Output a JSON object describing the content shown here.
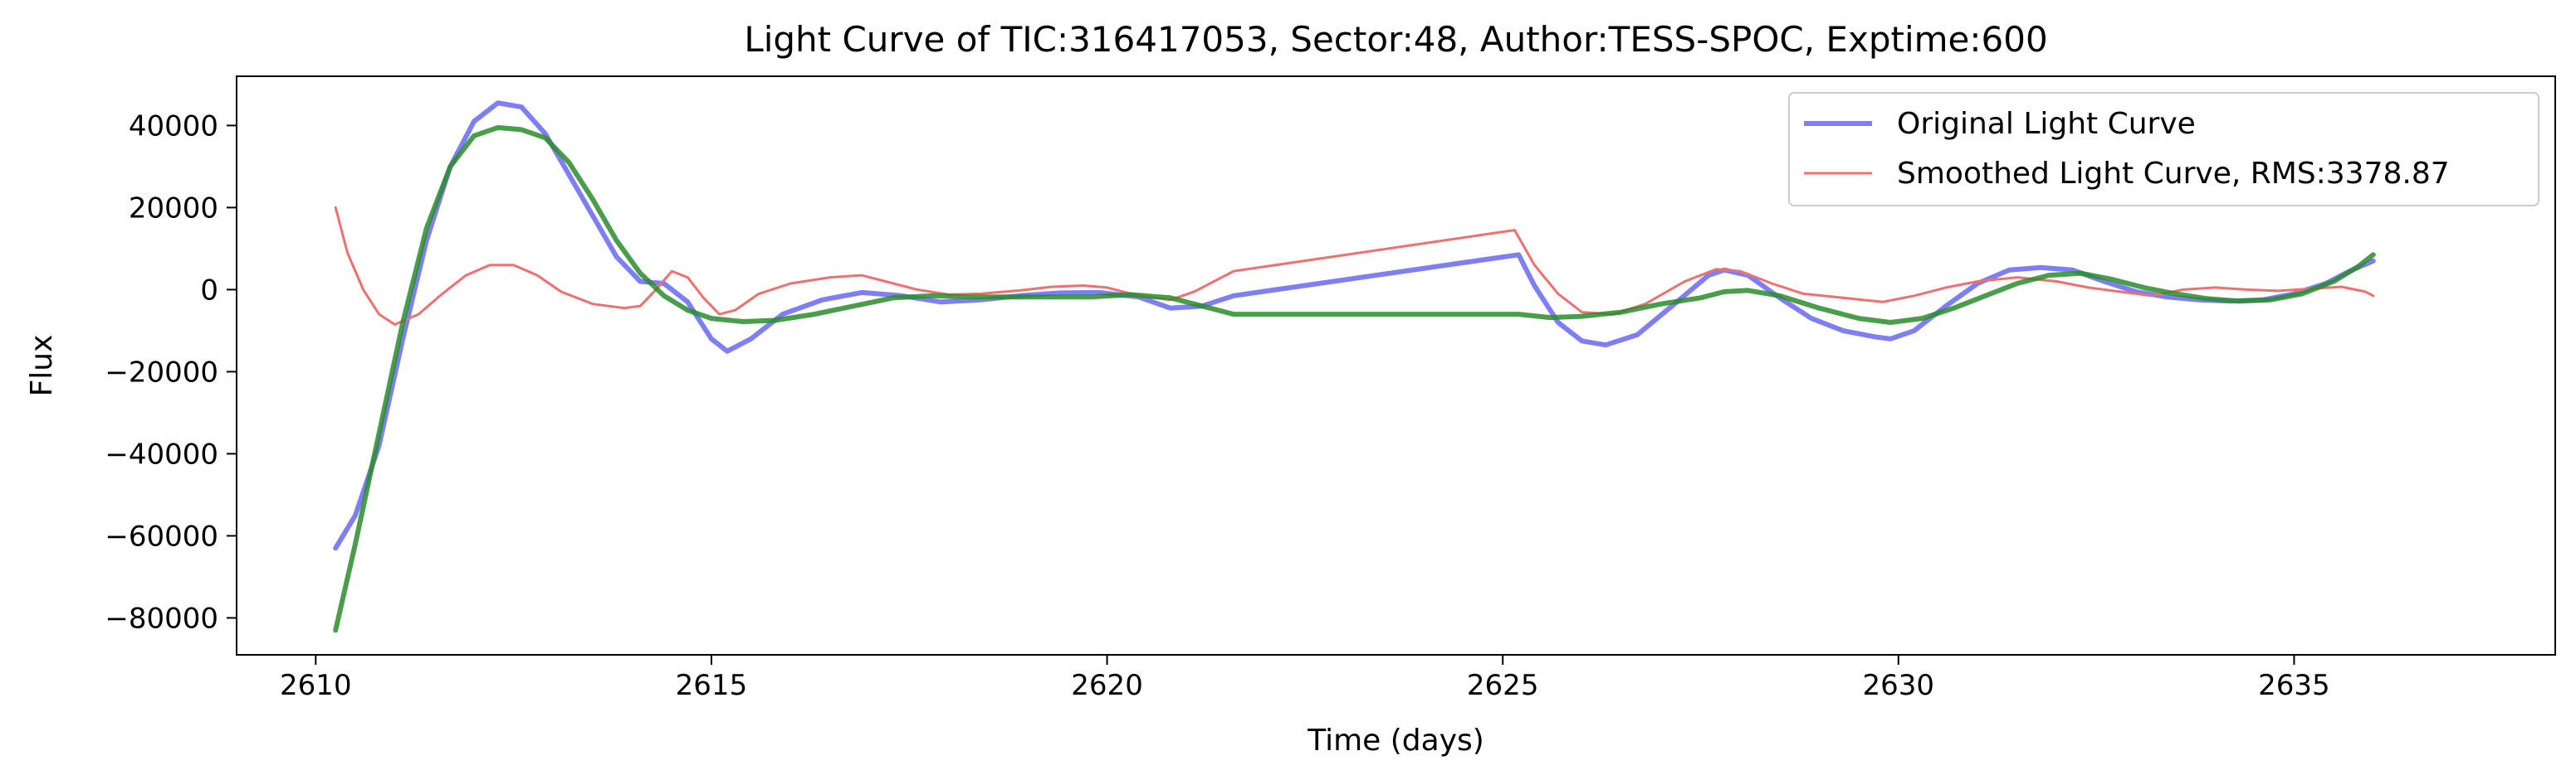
{
  "chart_data": {
    "type": "line",
    "title": "Light Curve of TIC:316417053, Sector:48, Author:TESS-SPOC, Exptime:600",
    "xlabel": "Time (days)",
    "ylabel": "Flux",
    "xlim": [
      2609,
      2638.3
    ],
    "ylim": [
      -89000,
      52000
    ],
    "xticks": [
      2610,
      2615,
      2620,
      2625,
      2630,
      2635
    ],
    "yticks": [
      40000,
      20000,
      0,
      -20000,
      -40000,
      -60000,
      -80000
    ],
    "xtick_labels": [
      "2610",
      "2615",
      "2620",
      "2625",
      "2630",
      "2635"
    ],
    "ytick_labels": [
      "40000",
      "20000",
      "0",
      "−20000",
      "−40000",
      "−60000",
      "−80000"
    ],
    "grid": false,
    "legend_position": "top-right",
    "series": [
      {
        "name": "Original Light Curve",
        "color": "#7f7ff5",
        "role": "original",
        "points": [
          [
            2610.25,
            -63000
          ],
          [
            2610.5,
            -55000
          ],
          [
            2610.8,
            -38000
          ],
          [
            2611.1,
            -12000
          ],
          [
            2611.4,
            12000
          ],
          [
            2611.7,
            30000
          ],
          [
            2612.0,
            41000
          ],
          [
            2612.3,
            45500
          ],
          [
            2612.6,
            44500
          ],
          [
            2612.9,
            38000
          ],
          [
            2613.2,
            28000
          ],
          [
            2613.5,
            18000
          ],
          [
            2613.8,
            8000
          ],
          [
            2614.1,
            2000
          ],
          [
            2614.4,
            1500
          ],
          [
            2614.7,
            -3000
          ],
          [
            2615.0,
            -12000
          ],
          [
            2615.2,
            -15000
          ],
          [
            2615.5,
            -12000
          ],
          [
            2615.9,
            -6000
          ],
          [
            2616.4,
            -2500
          ],
          [
            2616.9,
            -700
          ],
          [
            2617.4,
            -1500
          ],
          [
            2617.9,
            -3000
          ],
          [
            2618.4,
            -2500
          ],
          [
            2618.9,
            -1500
          ],
          [
            2619.4,
            -800
          ],
          [
            2619.9,
            -700
          ],
          [
            2620.4,
            -1800
          ],
          [
            2620.8,
            -4500
          ],
          [
            2621.2,
            -4000
          ],
          [
            2621.6,
            -1500
          ],
          [
            2625.2,
            8500
          ],
          [
            2625.4,
            1000
          ],
          [
            2625.7,
            -8000
          ],
          [
            2626.0,
            -12500
          ],
          [
            2626.3,
            -13500
          ],
          [
            2626.7,
            -11000
          ],
          [
            2627.2,
            -3000
          ],
          [
            2627.6,
            3500
          ],
          [
            2627.8,
            4800
          ],
          [
            2628.1,
            3500
          ],
          [
            2628.5,
            -2000
          ],
          [
            2628.9,
            -7000
          ],
          [
            2629.3,
            -10000
          ],
          [
            2629.7,
            -11500
          ],
          [
            2629.9,
            -12000
          ],
          [
            2630.2,
            -10000
          ],
          [
            2630.6,
            -4000
          ],
          [
            2631.0,
            1500
          ],
          [
            2631.4,
            4800
          ],
          [
            2631.8,
            5400
          ],
          [
            2632.2,
            4800
          ],
          [
            2632.6,
            2000
          ],
          [
            2633.0,
            -500
          ],
          [
            2633.4,
            -1800
          ],
          [
            2633.8,
            -2500
          ],
          [
            2634.2,
            -2800
          ],
          [
            2634.6,
            -2500
          ],
          [
            2635.0,
            -1000
          ],
          [
            2635.4,
            1500
          ],
          [
            2635.7,
            4500
          ],
          [
            2636.0,
            7000
          ]
        ]
      },
      {
        "name": "Smoothed Light Curve, RMS:3378.87",
        "color": "#f07070",
        "role": "smoothed",
        "points": [
          [
            2610.25,
            20000
          ],
          [
            2610.4,
            9000
          ],
          [
            2610.6,
            0
          ],
          [
            2610.8,
            -6000
          ],
          [
            2611.0,
            -8500
          ],
          [
            2611.3,
            -6000
          ],
          [
            2611.6,
            -1000
          ],
          [
            2611.9,
            3500
          ],
          [
            2612.2,
            6000
          ],
          [
            2612.5,
            6000
          ],
          [
            2612.8,
            3500
          ],
          [
            2613.1,
            -500
          ],
          [
            2613.5,
            -3500
          ],
          [
            2613.9,
            -4500
          ],
          [
            2614.1,
            -4000
          ],
          [
            2614.3,
            0
          ],
          [
            2614.5,
            4500
          ],
          [
            2614.7,
            3000
          ],
          [
            2614.9,
            -2000
          ],
          [
            2615.1,
            -6000
          ],
          [
            2615.3,
            -5000
          ],
          [
            2615.6,
            -1000
          ],
          [
            2616.0,
            1500
          ],
          [
            2616.5,
            3000
          ],
          [
            2616.9,
            3500
          ],
          [
            2617.2,
            2000
          ],
          [
            2617.6,
            0
          ],
          [
            2618.0,
            -1200
          ],
          [
            2618.4,
            -1000
          ],
          [
            2618.9,
            -200
          ],
          [
            2619.3,
            700
          ],
          [
            2619.7,
            1000
          ],
          [
            2620.0,
            500
          ],
          [
            2620.4,
            -1500
          ],
          [
            2620.8,
            -2500
          ],
          [
            2621.1,
            -500
          ],
          [
            2621.6,
            4500
          ],
          [
            2625.15,
            14500
          ],
          [
            2625.4,
            6000
          ],
          [
            2625.7,
            -1000
          ],
          [
            2626.0,
            -5500
          ],
          [
            2626.4,
            -6000
          ],
          [
            2626.8,
            -3500
          ],
          [
            2627.3,
            2000
          ],
          [
            2627.7,
            5000
          ],
          [
            2628.0,
            4500
          ],
          [
            2628.4,
            1500
          ],
          [
            2628.8,
            -1000
          ],
          [
            2629.3,
            -2000
          ],
          [
            2629.8,
            -3000
          ],
          [
            2630.2,
            -1500
          ],
          [
            2630.6,
            500
          ],
          [
            2631.0,
            2000
          ],
          [
            2631.5,
            3000
          ],
          [
            2632.0,
            2000
          ],
          [
            2632.4,
            500
          ],
          [
            2632.8,
            -500
          ],
          [
            2633.2,
            -1500
          ],
          [
            2633.6,
            0
          ],
          [
            2634.0,
            500
          ],
          [
            2634.4,
            0
          ],
          [
            2634.8,
            -300
          ],
          [
            2635.2,
            200
          ],
          [
            2635.6,
            700
          ],
          [
            2635.9,
            -500
          ],
          [
            2636.0,
            -1500
          ]
        ]
      },
      {
        "name": "",
        "color": "#2a8c2a",
        "role": "model",
        "points": [
          [
            2610.25,
            -83000
          ],
          [
            2610.5,
            -62000
          ],
          [
            2610.8,
            -35000
          ],
          [
            2611.1,
            -8000
          ],
          [
            2611.4,
            15000
          ],
          [
            2611.7,
            30000
          ],
          [
            2612.0,
            37500
          ],
          [
            2612.3,
            39500
          ],
          [
            2612.6,
            39000
          ],
          [
            2612.9,
            37000
          ],
          [
            2613.2,
            31000
          ],
          [
            2613.5,
            22000
          ],
          [
            2613.8,
            12000
          ],
          [
            2614.1,
            4000
          ],
          [
            2614.4,
            -1500
          ],
          [
            2614.7,
            -5000
          ],
          [
            2615.0,
            -7000
          ],
          [
            2615.4,
            -7800
          ],
          [
            2615.8,
            -7500
          ],
          [
            2616.3,
            -6000
          ],
          [
            2616.8,
            -4000
          ],
          [
            2617.3,
            -2000
          ],
          [
            2617.8,
            -1500
          ],
          [
            2618.3,
            -1800
          ],
          [
            2618.8,
            -1800
          ],
          [
            2619.3,
            -1800
          ],
          [
            2619.8,
            -1800
          ],
          [
            2620.3,
            -1200
          ],
          [
            2620.8,
            -2000
          ],
          [
            2621.3,
            -4500
          ],
          [
            2621.6,
            -6000
          ],
          [
            2625.2,
            -6000
          ],
          [
            2625.6,
            -6800
          ],
          [
            2626.0,
            -6500
          ],
          [
            2626.5,
            -5500
          ],
          [
            2627.0,
            -3500
          ],
          [
            2627.5,
            -2000
          ],
          [
            2627.8,
            -500
          ],
          [
            2628.1,
            -200
          ],
          [
            2628.5,
            -1500
          ],
          [
            2629.0,
            -4500
          ],
          [
            2629.5,
            -7000
          ],
          [
            2629.9,
            -8000
          ],
          [
            2630.3,
            -7000
          ],
          [
            2630.7,
            -4500
          ],
          [
            2631.1,
            -1500
          ],
          [
            2631.5,
            1500
          ],
          [
            2631.9,
            3500
          ],
          [
            2632.3,
            4000
          ],
          [
            2632.7,
            2500
          ],
          [
            2633.1,
            500
          ],
          [
            2633.5,
            -1000
          ],
          [
            2633.9,
            -2200
          ],
          [
            2634.3,
            -2800
          ],
          [
            2634.7,
            -2500
          ],
          [
            2635.1,
            -1000
          ],
          [
            2635.5,
            2000
          ],
          [
            2635.8,
            5500
          ],
          [
            2636.0,
            8500
          ]
        ]
      }
    ]
  }
}
